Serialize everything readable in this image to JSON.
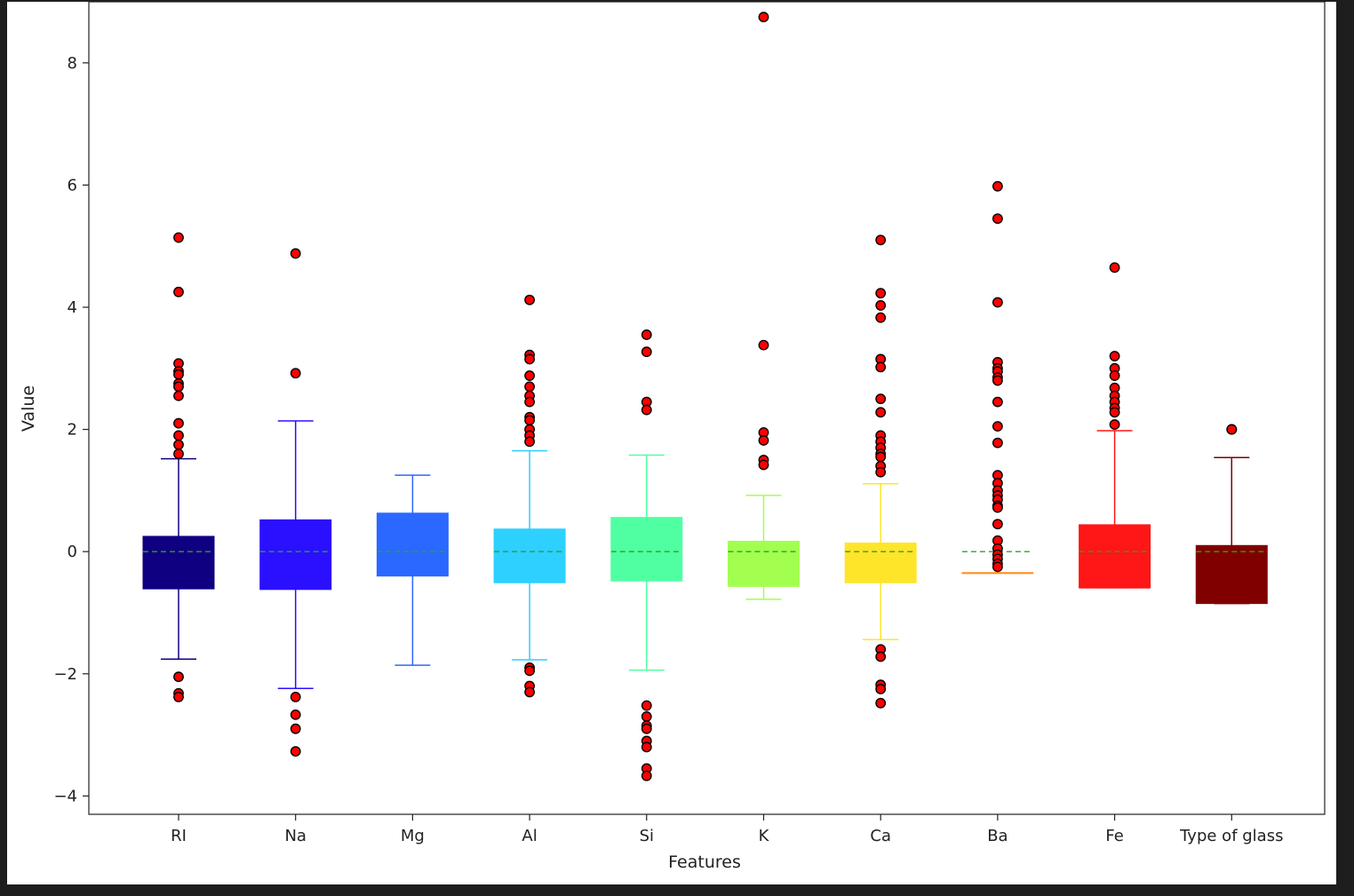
{
  "chart_data": {
    "type": "box",
    "title": "",
    "xlabel": "Features",
    "ylabel": "Value",
    "ylim": [
      -4.3,
      9.0
    ],
    "yticks": [
      -4,
      -2,
      0,
      2,
      4,
      6,
      8
    ],
    "ytick_labels": [
      "−4",
      "−2",
      "0",
      "2",
      "4",
      "6",
      "8"
    ],
    "mean_line": {
      "color": "#2ca02c",
      "style": "dashed"
    },
    "outlier_color": "#ff0000",
    "boxes": [
      {
        "name": "RI",
        "color": "#0e0080",
        "whisker_low": -1.76,
        "q1": -0.61,
        "median": -0.25,
        "q3": 0.25,
        "whisker_high": 1.52,
        "mean": 0,
        "outliers": [
          5.14,
          4.25,
          3.08,
          2.95,
          2.9,
          2.75,
          2.7,
          2.55,
          2.1,
          1.9,
          1.75,
          1.6,
          -2.05,
          -2.32,
          -2.38
        ]
      },
      {
        "name": "Na",
        "color": "#2a10ff",
        "whisker_low": -2.24,
        "q1": -0.62,
        "median": -0.1,
        "q3": 0.52,
        "whisker_high": 2.14,
        "mean": 0,
        "outliers": [
          4.88,
          2.92,
          -2.38,
          -2.67,
          -2.9,
          -3.27
        ]
      },
      {
        "name": "Mg",
        "color": "#2a68ff",
        "whisker_low": -1.86,
        "q1": -0.4,
        "median": 0.55,
        "q3": 0.63,
        "whisker_high": 1.25,
        "mean": 0,
        "outliers": []
      },
      {
        "name": "Al",
        "color": "#2dd0ff",
        "whisker_low": -1.77,
        "q1": -0.51,
        "median": -0.17,
        "q3": 0.37,
        "whisker_high": 1.65,
        "mean": 0,
        "outliers": [
          4.12,
          3.22,
          3.15,
          2.88,
          2.7,
          2.55,
          2.45,
          2.2,
          2.15,
          2.0,
          1.9,
          1.8,
          -1.9,
          -1.95,
          -2.2,
          -2.3
        ]
      },
      {
        "name": "Si",
        "color": "#50ffa2",
        "whisker_low": -1.94,
        "q1": -0.48,
        "median": 0.18,
        "q3": 0.56,
        "whisker_high": 1.58,
        "mean": 0,
        "outliers": [
          3.55,
          3.27,
          2.45,
          2.32,
          -2.52,
          -2.7,
          -2.85,
          -2.9,
          -3.1,
          -3.2,
          -3.55,
          -3.67
        ]
      },
      {
        "name": "K",
        "color": "#a2ff50",
        "whisker_low": -0.78,
        "q1": -0.57,
        "median": 0.08,
        "q3": 0.17,
        "whisker_high": 0.92,
        "mean": 0,
        "outliers": [
          8.75,
          3.38,
          1.95,
          1.82,
          1.5,
          1.42
        ]
      },
      {
        "name": "Ca",
        "color": "#ffe52a",
        "whisker_low": -1.44,
        "q1": -0.51,
        "median": -0.28,
        "q3": 0.14,
        "whisker_high": 1.11,
        "mean": 0,
        "outliers": [
          5.1,
          4.23,
          4.03,
          3.83,
          3.15,
          3.02,
          2.5,
          2.28,
          1.9,
          1.8,
          1.7,
          1.6,
          1.55,
          1.4,
          1.3,
          -1.6,
          -1.72,
          -2.18,
          -2.25,
          -2.48
        ]
      },
      {
        "name": "Ba",
        "color": "#ff8c1a",
        "whisker_low": -0.35,
        "q1": -0.35,
        "median": -0.35,
        "q3": -0.35,
        "whisker_high": -0.35,
        "mean": 0,
        "outliers": [
          5.98,
          5.45,
          4.08,
          3.1,
          3.0,
          2.95,
          2.85,
          2.8,
          2.45,
          2.05,
          1.78,
          1.25,
          1.12,
          1.0,
          0.92,
          0.85,
          0.75,
          0.72,
          0.45,
          0.18,
          0.05,
          -0.05,
          -0.12,
          -0.2,
          -0.25
        ]
      },
      {
        "name": "Fe",
        "color": "#ff1616",
        "whisker_low": -0.59,
        "q1": -0.59,
        "median": -0.59,
        "q3": 0.44,
        "whisker_high": 1.98,
        "mean": 0,
        "outliers": [
          4.65,
          3.2,
          3.0,
          2.88,
          2.68,
          2.55,
          2.45,
          2.35,
          2.28,
          2.08
        ]
      },
      {
        "name": "Type of glass",
        "color": "#800000",
        "whisker_low": -0.85,
        "q1": -0.85,
        "median": -0.35,
        "q3": 0.1,
        "whisker_high": 1.54,
        "mean": 0,
        "outliers": [
          2.0,
          2.0,
          2.0
        ]
      }
    ]
  }
}
